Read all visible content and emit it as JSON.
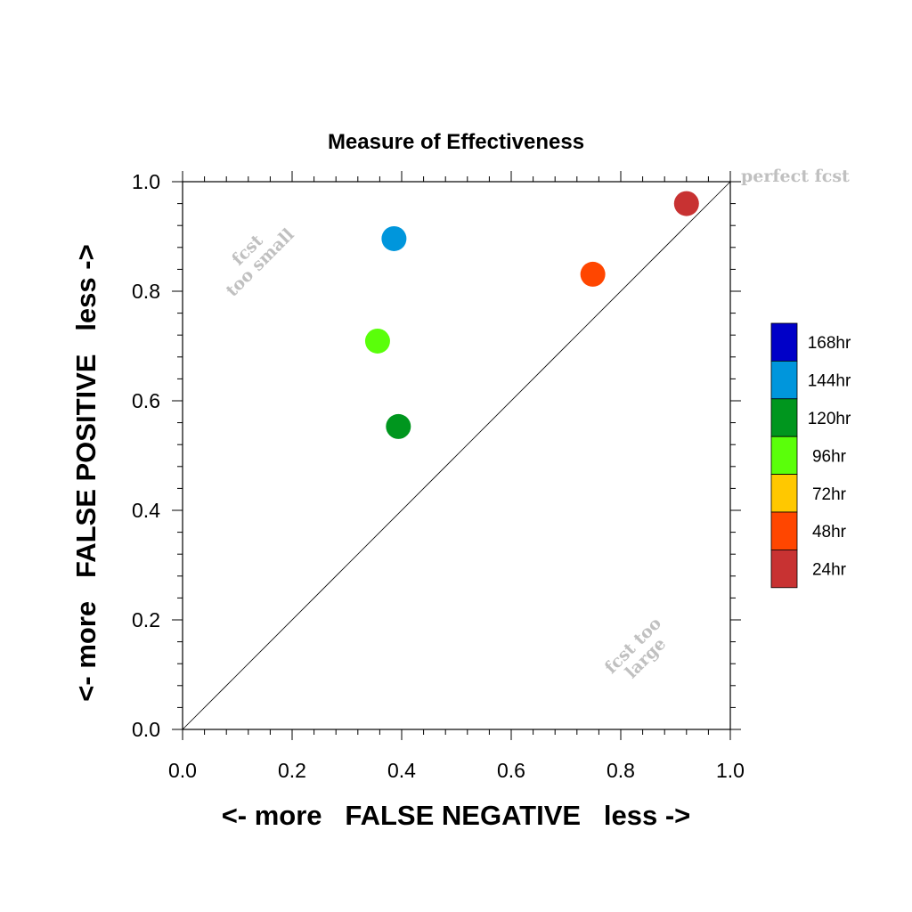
{
  "chart_data": {
    "type": "scatter",
    "title": "Measure of Effectiveness",
    "xlabel": "<- more   FALSE NEGATIVE   less ->",
    "ylabel": "<- more   FALSE POSITIVE   less ->",
    "xlim": [
      0.0,
      1.0
    ],
    "ylim": [
      0.0,
      1.0
    ],
    "xticks": [
      "0.0",
      "0.2",
      "0.4",
      "0.6",
      "0.8",
      "1.0"
    ],
    "yticks": [
      "0.0",
      "0.2",
      "0.4",
      "0.6",
      "0.8",
      "1.0"
    ],
    "grid": false,
    "diagonal_reference_line": true,
    "annotations": {
      "perfect": "perfect fcst",
      "too_small": [
        "fcst",
        "too small"
      ],
      "too_large": [
        "fcst too",
        "large"
      ]
    },
    "legend_position": "right",
    "legend": [
      {
        "label": "168hr",
        "color": "#0000c8"
      },
      {
        "label": "144hr",
        "color": "#0096dc"
      },
      {
        "label": "120hr",
        "color": "#00961e"
      },
      {
        "label": "96hr",
        "color": "#5aff0a"
      },
      {
        "label": "72hr",
        "color": "#ffc800"
      },
      {
        "label": "48hr",
        "color": "#ff4600"
      },
      {
        "label": "24hr",
        "color": "#c83232"
      }
    ],
    "points": [
      {
        "series": "24hr",
        "x": 0.92,
        "y": 0.96,
        "color": "#c83232"
      },
      {
        "series": "48hr",
        "x": 0.749,
        "y": 0.831,
        "color": "#ff4600"
      },
      {
        "series": "96hr",
        "x": 0.356,
        "y": 0.709,
        "color": "#5aff0a"
      },
      {
        "series": "120hr",
        "x": 0.394,
        "y": 0.553,
        "color": "#00961e"
      },
      {
        "series": "144hr",
        "x": 0.386,
        "y": 0.896,
        "color": "#0096dc"
      }
    ]
  }
}
